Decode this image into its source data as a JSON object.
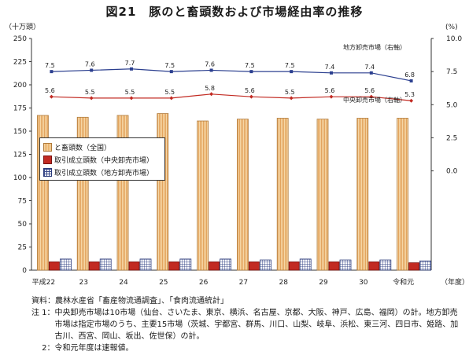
{
  "title": "図21　豚のと畜頭数および市場経由率の推移",
  "chart_data": {
    "type": "bar",
    "left_unit": "（十万頭）",
    "right_unit": "(%)",
    "x_unit": "（年度）",
    "categories": [
      "平成22",
      "23",
      "24",
      "25",
      "26",
      "27",
      "28",
      "29",
      "30",
      "令和元"
    ],
    "ylim": [
      0,
      250
    ],
    "y_ticks": [
      0,
      25,
      50,
      75,
      100,
      125,
      150,
      175,
      200,
      225,
      250
    ],
    "y2lim": [
      -7.5,
      10.0
    ],
    "y2_ticks": [
      "0.0",
      "2.5",
      "5.0",
      "7.5",
      "10.0"
    ],
    "series": [
      {
        "name": "と畜頭数（全国）",
        "type": "bar",
        "values": [
          167,
          165,
          167,
          169,
          161,
          163,
          164,
          163,
          164,
          164
        ],
        "color": "#e9b06a"
      },
      {
        "name": "取引成立頭数（中央卸売市場）",
        "type": "bar",
        "values": [
          9,
          9,
          9,
          9,
          9,
          9,
          9,
          9,
          9,
          8
        ],
        "color": "#c22a22"
      },
      {
        "name": "取引成立頭数（地方卸売市場）",
        "type": "bar",
        "values": [
          12,
          12,
          12,
          12,
          12,
          11,
          12,
          11,
          11,
          10
        ],
        "color": "#3a4a8a"
      },
      {
        "name": "地方卸売市場（右軸）",
        "type": "line",
        "axis": "right",
        "values": [
          7.5,
          7.6,
          7.7,
          7.5,
          7.6,
          7.5,
          7.5,
          7.4,
          7.4,
          6.8
        ],
        "labels": [
          "7.5",
          "7.6",
          "7.7",
          "7.5",
          "7.6",
          "7.5",
          "7.5",
          "7.4",
          "7.4",
          "6.8"
        ],
        "color": "#2b3f8f"
      },
      {
        "name": "中央卸売市場（右軸）",
        "type": "line",
        "axis": "right",
        "values": [
          5.6,
          5.5,
          5.5,
          5.5,
          5.8,
          5.6,
          5.5,
          5.6,
          5.6,
          5.3
        ],
        "labels": [
          "5.6",
          "5.5",
          "5.5",
          "5.5",
          "5.8",
          "5.6",
          "5.5",
          "5.6",
          "5.6",
          "5.3"
        ],
        "color": "#c22a22"
      }
    ]
  },
  "notes": [
    {
      "key": "資料：",
      "text": "農林水産省「畜産物流通調査」、「食肉流通統計」"
    },
    {
      "key": "注 1：",
      "text": "中央卸売市場は10市場（仙台、さいたま、東京、横浜、名古屋、京都、大阪、神戸、広島、福岡）の計。地方卸売市場は指定市場のうち、主要15市場（茨城、宇都宮、群馬、川口、山梨、岐阜、浜松、東三河、四日市、姫路、加古川、西宮、岡山、坂出、佐世保）の計。"
    },
    {
      "key": "　 2：",
      "text": "令和元年度は速報値。"
    }
  ]
}
